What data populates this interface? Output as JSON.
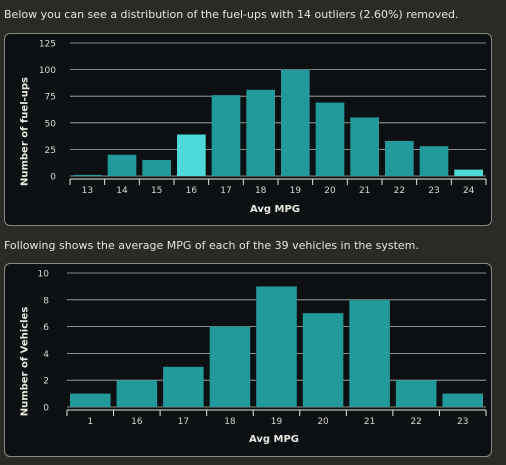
{
  "intro1": "Below you can see a distribution of the fuel-ups with 14 outliers (2.60%) removed.",
  "intro2": "Following shows the average MPG of each of the 39 vehicles in the system.",
  "colors": {
    "bar": "#22999a",
    "highlight": "#4ddad8",
    "grid": "#e8e8e0",
    "tick_text": "#d8d8d0"
  },
  "chart_data": [
    {
      "type": "bar",
      "xlabel": "Avg MPG",
      "ylabel": "Number of fuel-ups",
      "categories": [
        "13",
        "14",
        "15",
        "16",
        "17",
        "18",
        "19",
        "20",
        "21",
        "22",
        "23",
        "24"
      ],
      "values": [
        1,
        20,
        15,
        39,
        76,
        81,
        100,
        69,
        55,
        33,
        28,
        6
      ],
      "highlighted": [
        "16",
        "24"
      ],
      "ylim": [
        0,
        125
      ],
      "yticks": [
        0,
        25,
        50,
        75,
        100,
        125
      ],
      "grid": true
    },
    {
      "type": "bar",
      "xlabel": "Avg MPG",
      "ylabel": "Number of Vehicles",
      "categories": [
        "1",
        "16",
        "17",
        "18",
        "19",
        "20",
        "21",
        "22",
        "23"
      ],
      "values": [
        1,
        2,
        3,
        6,
        9,
        7,
        8,
        2,
        1
      ],
      "ylim": [
        0,
        10
      ],
      "yticks": [
        0,
        2,
        4,
        6,
        8,
        10
      ],
      "grid": true
    }
  ]
}
